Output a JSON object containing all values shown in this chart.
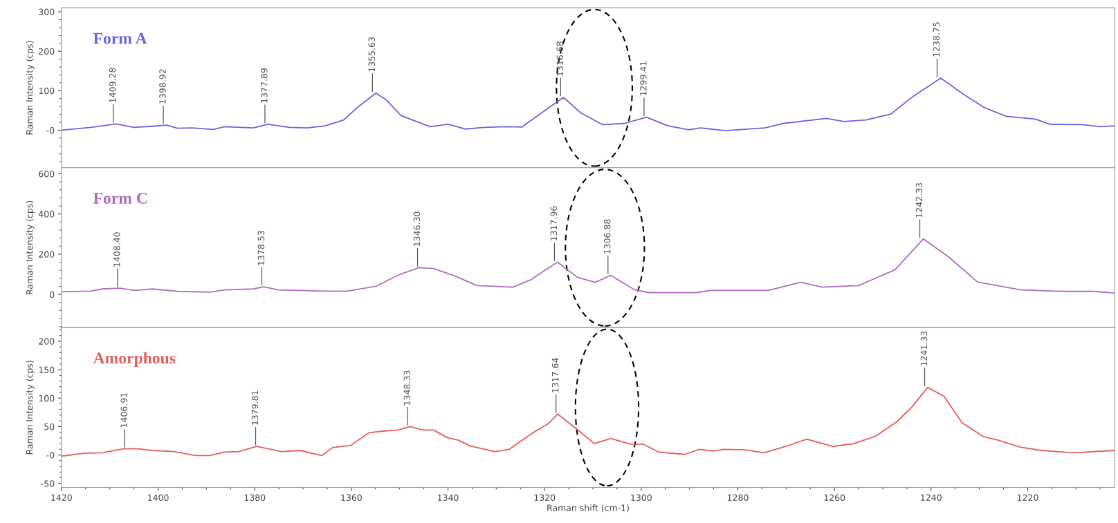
{
  "chart_data": [
    {
      "type": "line",
      "ylabel": "Raman Intensity (cps)",
      "xlim": [
        1420,
        1202
      ],
      "ylim": [
        -95,
        310
      ],
      "yticks": [
        {
          "value": 0,
          "label": "-0"
        },
        100,
        200,
        300
      ],
      "tick_labels": "y",
      "x": [
        1420,
        1413.9,
        1408.7,
        1405,
        1401.2,
        1398.2,
        1396,
        1393,
        1388.5,
        1386.3,
        1380.3,
        1377.3,
        1372.8,
        1369.1,
        1365.4,
        1361.6,
        1358.7,
        1354.9,
        1352.7,
        1349.7,
        1346.7,
        1343.7,
        1340,
        1336.3,
        1332.5,
        1328,
        1324.7,
        1320.6,
        1316.1,
        1312.5,
        1308,
        1303.5,
        1298.9,
        1294.5,
        1290.1,
        1287.8,
        1282.6,
        1274.4,
        1270.7,
        1261.7,
        1258,
        1253.5,
        1248.3,
        1243.8,
        1238,
        1233.4,
        1228.9,
        1224.4,
        1218.4,
        1215.4,
        1208.7,
        1205,
        1202
      ],
      "series": [
        {
          "name": "Form A",
          "color": "#6666e0",
          "values": [
            0,
            7,
            16,
            7,
            10,
            13,
            5,
            6,
            2,
            9,
            6,
            15,
            7,
            6,
            11,
            26,
            58,
            94,
            76,
            37,
            23,
            9,
            15,
            3,
            7,
            9,
            8,
            44,
            83,
            44,
            14,
            17,
            33,
            11,
            1,
            6,
            -1,
            6,
            17,
            30,
            22,
            26,
            41,
            85,
            132,
            92,
            57,
            35,
            28,
            15,
            14,
            9,
            11
          ]
        }
      ],
      "annotations": [
        {
          "text": "1409.28",
          "x": 1409.28,
          "y": 16
        },
        {
          "text": "1398.92",
          "x": 1398.92,
          "y": 13
        },
        {
          "text": "1377.89",
          "x": 1377.89,
          "y": 15
        },
        {
          "text": "1355.63",
          "x": 1355.63,
          "y": 94
        },
        {
          "text": "1316.68",
          "x": 1316.68,
          "y": 83
        },
        {
          "text": "1299.41",
          "x": 1299.41,
          "y": 33
        },
        {
          "text": "1238.75",
          "x": 1238.75,
          "y": 132
        }
      ]
    },
    {
      "type": "line",
      "ylabel": "Raman Intensity (cps)",
      "xlim": [
        1420,
        1202
      ],
      "ylim": [
        -165,
        630
      ],
      "yticks": [
        0,
        200,
        400,
        600
      ],
      "tick_labels": "y",
      "x": [
        1420,
        1413.9,
        1411.6,
        1407.9,
        1404.9,
        1401.2,
        1396,
        1389.3,
        1386.3,
        1380.3,
        1378.1,
        1375.1,
        1365.4,
        1360.9,
        1354.9,
        1350.4,
        1346,
        1343,
        1338.5,
        1334,
        1326.6,
        1322.8,
        1319.8,
        1317.3,
        1313.2,
        1309.5,
        1306.3,
        1301.3,
        1298.3,
        1288.6,
        1285.6,
        1273.7,
        1267,
        1262.5,
        1255,
        1247.5,
        1241.6,
        1236.3,
        1230.4,
        1221.4,
        1212.5,
        1206.5,
        1202
      ],
      "series": [
        {
          "name": "Form C",
          "color": "#b06cc0",
          "values": [
            13,
            16,
            27,
            31,
            20,
            27,
            15,
            11,
            22,
            27,
            38,
            22,
            16,
            16,
            40,
            95,
            133,
            129,
            91,
            44,
            36,
            73,
            122,
            160,
            85,
            60,
            95,
            22,
            9,
            9,
            20,
            20,
            60,
            36,
            44,
            122,
            276,
            185,
            62,
            22,
            15,
            15,
            7
          ]
        }
      ],
      "annotations": [
        {
          "text": "1408.40",
          "x": 1408.4,
          "y": 31
        },
        {
          "text": "1378.53",
          "x": 1378.53,
          "y": 38
        },
        {
          "text": "1346.30",
          "x": 1346.3,
          "y": 133
        },
        {
          "text": "1317.96",
          "x": 1317.96,
          "y": 160
        },
        {
          "text": "1306.88",
          "x": 1306.88,
          "y": 95
        },
        {
          "text": "1242.33",
          "x": 1242.33,
          "y": 276
        }
      ]
    },
    {
      "type": "line",
      "xlabel": "Raman shift (cm-1)",
      "ylabel": "Raman Intensity (cps)",
      "xlim": [
        1420,
        1202
      ],
      "ylim": [
        -57,
        224
      ],
      "xticks": [
        1420,
        1400,
        1380,
        1360,
        1340,
        1320,
        1300,
        1280,
        1260,
        1240,
        1220
      ],
      "yticks": [
        -50,
        {
          "value": 0,
          "label": "-0"
        },
        50,
        100,
        150,
        200
      ],
      "x": [
        1420,
        1415.4,
        1411.6,
        1407.2,
        1404.2,
        1401.2,
        1396.7,
        1392.2,
        1389.3,
        1386.3,
        1383.3,
        1379.6,
        1374.4,
        1370.6,
        1366.1,
        1363.9,
        1360.1,
        1356.4,
        1353.4,
        1350.4,
        1347.8,
        1345.2,
        1343,
        1340,
        1337.8,
        1335.5,
        1330.3,
        1327.3,
        1322.8,
        1319.1,
        1317.3,
        1313.4,
        1309.7,
        1306.3,
        1302.2,
        1299.6,
        1296.3,
        1291,
        1288,
        1285.1,
        1282.8,
        1278.4,
        1274.6,
        1270.1,
        1265.7,
        1260.4,
        1256,
        1251.5,
        1247,
        1244,
        1240.7,
        1237.3,
        1233.6,
        1229.1,
        1226.1,
        1221.6,
        1217.2,
        1210.4,
        1202
      ],
      "series": [
        {
          "name": "Amorphous",
          "color": "#e85c5c",
          "values": [
            -2,
            3,
            4,
            11,
            11,
            8,
            6,
            -1,
            -1,
            5,
            6,
            15,
            6,
            8,
            -1,
            13,
            17,
            39,
            42,
            44,
            50,
            44,
            44,
            30,
            26,
            16,
            6,
            10,
            37,
            56,
            72,
            46,
            20,
            29,
            19,
            19,
            5,
            1,
            10,
            7,
            10,
            9,
            4,
            15,
            28,
            15,
            20,
            33,
            59,
            84,
            119,
            103,
            57,
            32,
            26,
            14,
            8,
            4,
            8
          ]
        }
      ],
      "annotations": [
        {
          "text": "1406.91",
          "x": 1406.91,
          "y": 11
        },
        {
          "text": "1379.81",
          "x": 1379.81,
          "y": 15
        },
        {
          "text": "1348.33",
          "x": 1348.33,
          "y": 50
        },
        {
          "text": "1317.64",
          "x": 1317.64,
          "y": 72
        },
        {
          "text": "1241.33",
          "x": 1241.33,
          "y": 119
        }
      ]
    }
  ]
}
